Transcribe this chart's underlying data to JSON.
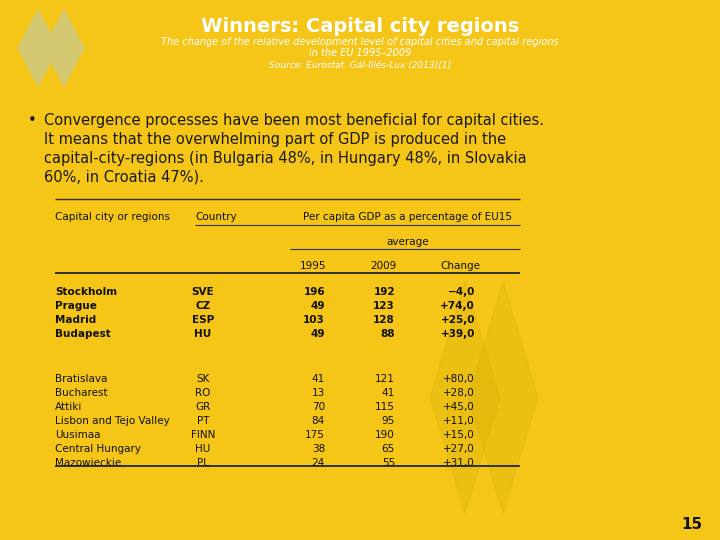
{
  "title": "Winners: Capital city regions",
  "subtitle_line1": "The change of the relative development level of capital cities and capital regions",
  "subtitle_line2": "in the EU 1995–2009",
  "source_line": "Source: Eurostat. Gál-Illés-Lux (2013)",
  "source_ref": "[1]",
  "header_bg": "#7a7a7a",
  "body_bg": "#F5C518",
  "title_color": "#FFFFFF",
  "subtitle_color": "#FFFFFF",
  "source_color": "#FFFFFF",
  "bullet_text_line1": "Convergence processes have been most beneficial for capital cities.",
  "bullet_text_line2": "It means that the overwhelming part of GDP is produced in the",
  "bullet_text_line3": "capital-city-regions (in Bulgaria 48%, in Hungary 48%, in Slovakia",
  "bullet_text_line4": "60%, in Croatia 47%).",
  "table_col_headers": [
    "Capital city or regions",
    "Country",
    "Per capita GDP as a percentage of EU15"
  ],
  "table_sub_header": "average",
  "table_sub_cols": [
    "1995",
    "2009",
    "Change"
  ],
  "table_row1": [
    [
      "Stockholm",
      "SVE",
      "196",
      "192",
      "−4,0"
    ],
    [
      "Prague",
      "CZ",
      "49",
      "123",
      "+74,0"
    ],
    [
      "Madrid",
      "ESP",
      "103",
      "128",
      "+25,0"
    ],
    [
      "Budapest",
      "HU",
      "49",
      "88",
      "+39,0"
    ]
  ],
  "table_row2": [
    [
      "Bratislava",
      "SK",
      "41",
      "121",
      "+80,0"
    ],
    [
      "Bucharest",
      "RO",
      "13",
      "41",
      "+28,0"
    ],
    [
      "Attiki",
      "GR",
      "70",
      "115",
      "+45,0"
    ],
    [
      "Lisbon and Tejo Valley",
      "PT",
      "84",
      "95",
      "+11,0"
    ],
    [
      "Uusimaa",
      "FINN",
      "175",
      "190",
      "+15,0"
    ],
    [
      "Central Hungary",
      "HU",
      "38",
      "65",
      "+27,0"
    ],
    [
      "Mazowieckie",
      "PL",
      "24",
      "55",
      "+31,0"
    ]
  ],
  "page_number": "15",
  "logo_color": "#D4C870",
  "wm_color": "#C8A800"
}
